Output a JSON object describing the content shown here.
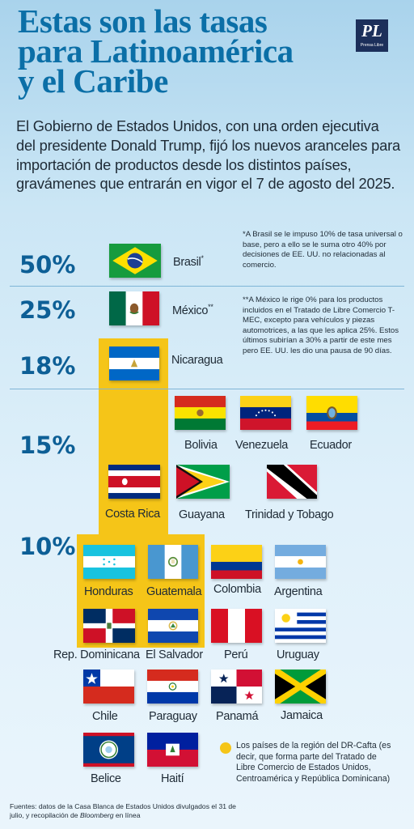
{
  "header": {
    "title_lines": [
      "Estas son las tasas",
      "para Latinoamérica",
      "y el Caribe"
    ],
    "logo_text": "PL",
    "logo_sub": "Prensa Libre"
  },
  "intro": "El Gobierno de Estados Unidos, con una orden ejecutiva del presidente Donald Trump, fijó los nuevos aranceles para importación de productos desde los distintos países, gravámenes que entrarán en vigor el 7 de agosto del 2025.",
  "rates": [
    "50%",
    "25%",
    "18%",
    "15%",
    "10%"
  ],
  "countries": {
    "brasil": "Brasil",
    "brasil_mark": "*",
    "mexico": "México",
    "mexico_mark": "**",
    "nicaragua": "Nicaragua",
    "bolivia": "Bolivia",
    "venezuela": "Venezuela",
    "ecuador": "Ecuador",
    "costa_rica": "Costa Rica",
    "guayana": "Guayana",
    "trinidad": "Trinidad y Tobago",
    "honduras": "Honduras",
    "guatemala": "Guatemala",
    "colombia": "Colombia",
    "argentina": "Argentina",
    "rep_dominicana": "Rep. Dominicana",
    "el_salvador": "El Salvador",
    "peru": "Perú",
    "uruguay": "Uruguay",
    "chile": "Chile",
    "paraguay": "Paraguay",
    "panama": "Panamá",
    "jamaica": "Jamaica",
    "belice": "Belice",
    "haiti": "Haití"
  },
  "notes": {
    "brasil": "*A Brasil se le impuso 10% de tasa universal o base, pero a ello se le suma otro 40% por decisiones de EE. UU. no relacionadas al comercio.",
    "mexico": "**A México le rige 0% para los productos incluidos en el Tratado de Libre Comercio T-MEC, excepto para vehículos y piezas automotrices, a las que les aplica 25%. Estos últimos subirían a 30% a partir de este mes pero EE. UU. les dio una pausa de 90 días."
  },
  "legend": "Los países de la región del DR-Cafta (es decir, que forma parte del Tratado de Libre Comercio de Estados Unidos, Centroamérica y República Dominicana)",
  "source": {
    "prefix": "Fuentes: datos de la Casa Blanca de Estados Unidos divulgados el 31 de julio, y recopilación de ",
    "italic": "Bloomberg",
    "suffix": " en línea"
  },
  "colors": {
    "title": "#0b6fa7",
    "rate": "#0d5f96",
    "dr_cafta_highlight": "#f5c518",
    "background_top": "#a9d3ec"
  }
}
